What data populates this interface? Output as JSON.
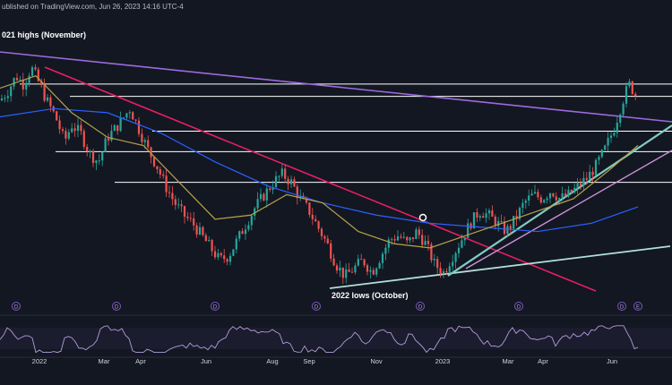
{
  "header": {
    "text": "ublished on TradingView.com, Jun 26, 2023 14:16 UTC-4"
  },
  "annotations": {
    "top_left": "021 highs (November)",
    "bottom": "2022 lows (October)"
  },
  "chart_data": {
    "type": "candlestick",
    "title": "",
    "x_tick_labels": [
      "2022",
      "Mar",
      "Apr",
      "Jun",
      "Aug",
      "Sep",
      "Nov",
      "2023",
      "Mar",
      "Apr",
      "Jun"
    ],
    "x_range": [
      "2021-11",
      "2023-07"
    ],
    "price": [
      [
        0,
        0.7
      ],
      [
        8,
        0.74
      ],
      [
        18,
        0.82
      ],
      [
        26,
        0.78
      ],
      [
        35,
        0.86
      ],
      [
        42,
        0.8
      ],
      [
        52,
        0.7
      ],
      [
        62,
        0.62
      ],
      [
        72,
        0.5
      ],
      [
        80,
        0.58
      ],
      [
        90,
        0.54
      ],
      [
        100,
        0.44
      ],
      [
        110,
        0.4
      ],
      [
        120,
        0.52
      ],
      [
        132,
        0.58
      ],
      [
        145,
        0.66
      ],
      [
        155,
        0.56
      ],
      [
        165,
        0.46
      ],
      [
        175,
        0.38
      ],
      [
        185,
        0.28
      ],
      [
        195,
        0.2
      ],
      [
        205,
        0.14
      ],
      [
        215,
        0.1
      ],
      [
        225,
        0.04
      ],
      [
        235,
        -0.02
      ],
      [
        245,
        -0.08
      ],
      [
        255,
        -0.06
      ],
      [
        265,
        0.02
      ],
      [
        275,
        0.1
      ],
      [
        285,
        0.18
      ],
      [
        295,
        0.24
      ],
      [
        305,
        0.3
      ],
      [
        315,
        0.34
      ],
      [
        325,
        0.3
      ],
      [
        335,
        0.22
      ],
      [
        345,
        0.16
      ],
      [
        355,
        0.08
      ],
      [
        365,
        0.0
      ],
      [
        375,
        -0.1
      ],
      [
        385,
        -0.16
      ],
      [
        395,
        -0.12
      ],
      [
        405,
        -0.08
      ],
      [
        415,
        -0.14
      ],
      [
        425,
        -0.06
      ],
      [
        435,
        0.02
      ],
      [
        445,
        0.04
      ],
      [
        455,
        0.0
      ],
      [
        465,
        0.06
      ],
      [
        475,
        0.0
      ],
      [
        485,
        -0.1
      ],
      [
        495,
        -0.14
      ],
      [
        505,
        -0.06
      ],
      [
        515,
        0.02
      ],
      [
        525,
        0.1
      ],
      [
        535,
        0.16
      ],
      [
        545,
        0.14
      ],
      [
        555,
        0.1
      ],
      [
        565,
        0.06
      ],
      [
        575,
        0.12
      ],
      [
        585,
        0.2
      ],
      [
        595,
        0.24
      ],
      [
        605,
        0.22
      ],
      [
        615,
        0.26
      ],
      [
        625,
        0.22
      ],
      [
        635,
        0.24
      ],
      [
        645,
        0.28
      ],
      [
        655,
        0.32
      ],
      [
        665,
        0.38
      ],
      [
        675,
        0.46
      ],
      [
        685,
        0.56
      ],
      [
        695,
        0.7
      ],
      [
        702,
        0.78
      ],
      [
        708,
        0.74
      ],
      [
        712,
        0.7
      ]
    ],
    "moving_average_fast": [
      [
        0,
        0.76
      ],
      [
        40,
        0.82
      ],
      [
        80,
        0.64
      ],
      [
        120,
        0.52
      ],
      [
        160,
        0.48
      ],
      [
        200,
        0.3
      ],
      [
        240,
        0.12
      ],
      [
        280,
        0.14
      ],
      [
        320,
        0.24
      ],
      [
        360,
        0.2
      ],
      [
        400,
        0.06
      ],
      [
        440,
        0.0
      ],
      [
        480,
        -0.02
      ],
      [
        520,
        0.04
      ],
      [
        560,
        0.1
      ],
      [
        600,
        0.16
      ],
      [
        640,
        0.22
      ],
      [
        680,
        0.36
      ],
      [
        712,
        0.48
      ]
    ],
    "moving_average_slow": [
      [
        0,
        0.62
      ],
      [
        60,
        0.66
      ],
      [
        120,
        0.64
      ],
      [
        180,
        0.54
      ],
      [
        240,
        0.4
      ],
      [
        300,
        0.28
      ],
      [
        360,
        0.2
      ],
      [
        420,
        0.14
      ],
      [
        480,
        0.1
      ],
      [
        540,
        0.08
      ],
      [
        600,
        0.06
      ],
      [
        660,
        0.1
      ],
      [
        712,
        0.18
      ]
    ],
    "horizontal_levels": [
      0.78,
      0.72,
      0.55,
      0.45,
      0.3
    ],
    "rsi_band": [
      30,
      70
    ],
    "colors": {
      "up": "#26a69a",
      "down": "#ef5350",
      "ma_fast": "#b8a24a",
      "ma_slow": "#2962ff",
      "downtrend_red": "#e91e63",
      "downtrend_purple": "#9c6ade",
      "trend_green": "#b2dfdb",
      "channel_cyan": "#80cbc4",
      "channel_violet": "#ce93d8",
      "level_white": "#ffffff",
      "rsi": "#b39ddb"
    }
  }
}
